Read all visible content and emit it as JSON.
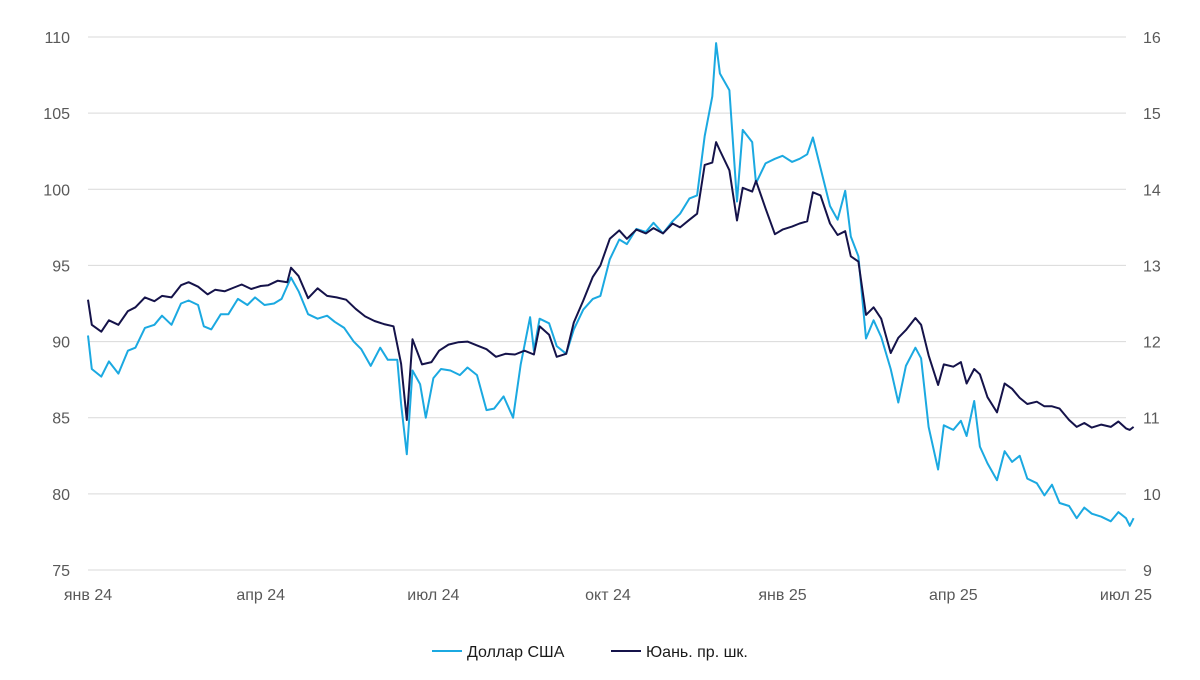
{
  "chart_data": {
    "type": "line",
    "title": "",
    "x_tick_labels": [
      "янв 24",
      "апр 24",
      "июл 24",
      "окт 24",
      "янв 25",
      "апр 25",
      "июл 25"
    ],
    "x_tick_dates": [
      "2024-01-01",
      "2024-04-01",
      "2024-07-01",
      "2024-10-01",
      "2025-01-01",
      "2025-04-01",
      "2025-07-01"
    ],
    "y_left": {
      "min": 75,
      "max": 110,
      "ticks": [
        75,
        80,
        85,
        90,
        95,
        100,
        105,
        110
      ]
    },
    "y_right": {
      "min": 9,
      "max": 16,
      "ticks": [
        9,
        10,
        11,
        12,
        13,
        14,
        15,
        16
      ]
    },
    "grid": true,
    "legend_position": "bottom-center",
    "series": [
      {
        "name": "Доллар США",
        "axis": "left",
        "color": "#1ba9e1",
        "points": [
          [
            "2024-01-01",
            90.4
          ],
          [
            "2024-01-03",
            88.2
          ],
          [
            "2024-01-08",
            87.7
          ],
          [
            "2024-01-12",
            88.7
          ],
          [
            "2024-01-17",
            87.9
          ],
          [
            "2024-01-22",
            89.4
          ],
          [
            "2024-01-26",
            89.6
          ],
          [
            "2024-01-31",
            90.9
          ],
          [
            "2024-02-05",
            91.1
          ],
          [
            "2024-02-09",
            91.7
          ],
          [
            "2024-02-14",
            91.1
          ],
          [
            "2024-02-19",
            92.5
          ],
          [
            "2024-02-23",
            92.7
          ],
          [
            "2024-02-28",
            92.4
          ],
          [
            "2024-03-02",
            91.0
          ],
          [
            "2024-03-06",
            90.8
          ],
          [
            "2024-03-11",
            91.8
          ],
          [
            "2024-03-15",
            91.8
          ],
          [
            "2024-03-20",
            92.8
          ],
          [
            "2024-03-25",
            92.4
          ],
          [
            "2024-03-29",
            92.9
          ],
          [
            "2024-04-03",
            92.4
          ],
          [
            "2024-04-08",
            92.5
          ],
          [
            "2024-04-12",
            92.8
          ],
          [
            "2024-04-17",
            94.2
          ],
          [
            "2024-04-21",
            93.3
          ],
          [
            "2024-04-26",
            91.8
          ],
          [
            "2024-05-01",
            91.5
          ],
          [
            "2024-05-06",
            91.7
          ],
          [
            "2024-05-10",
            91.3
          ],
          [
            "2024-05-15",
            90.9
          ],
          [
            "2024-05-20",
            90.0
          ],
          [
            "2024-05-24",
            89.5
          ],
          [
            "2024-05-29",
            88.4
          ],
          [
            "2024-06-03",
            89.6
          ],
          [
            "2024-06-07",
            88.8
          ],
          [
            "2024-06-12",
            88.8
          ],
          [
            "2024-06-14",
            85.9
          ],
          [
            "2024-06-17",
            82.6
          ],
          [
            "2024-06-20",
            88.1
          ],
          [
            "2024-06-24",
            87.2
          ],
          [
            "2024-06-27",
            85.0
          ],
          [
            "2024-07-01",
            87.6
          ],
          [
            "2024-07-05",
            88.2
          ],
          [
            "2024-07-10",
            88.1
          ],
          [
            "2024-07-15",
            87.8
          ],
          [
            "2024-07-19",
            88.3
          ],
          [
            "2024-07-24",
            87.8
          ],
          [
            "2024-07-29",
            85.5
          ],
          [
            "2024-08-02",
            85.6
          ],
          [
            "2024-08-07",
            86.4
          ],
          [
            "2024-08-12",
            85.0
          ],
          [
            "2024-08-16",
            88.5
          ],
          [
            "2024-08-21",
            91.6
          ],
          [
            "2024-08-23",
            89.4
          ],
          [
            "2024-08-26",
            91.5
          ],
          [
            "2024-08-31",
            91.2
          ],
          [
            "2024-09-04",
            89.7
          ],
          [
            "2024-09-09",
            89.2
          ],
          [
            "2024-09-13",
            90.8
          ],
          [
            "2024-09-18",
            92.1
          ],
          [
            "2024-09-23",
            92.8
          ],
          [
            "2024-09-27",
            93.0
          ],
          [
            "2024-10-02",
            95.4
          ],
          [
            "2024-10-07",
            96.7
          ],
          [
            "2024-10-11",
            96.4
          ],
          [
            "2024-10-16",
            97.4
          ],
          [
            "2024-10-21",
            97.2
          ],
          [
            "2024-10-25",
            97.8
          ],
          [
            "2024-10-30",
            97.1
          ],
          [
            "2024-11-04",
            97.9
          ],
          [
            "2024-11-08",
            98.4
          ],
          [
            "2024-11-13",
            99.4
          ],
          [
            "2024-11-17",
            99.6
          ],
          [
            "2024-11-21",
            103.5
          ],
          [
            "2024-11-25",
            106.1
          ],
          [
            "2024-11-27",
            109.6
          ],
          [
            "2024-11-29",
            107.6
          ],
          [
            "2024-12-04",
            106.5
          ],
          [
            "2024-12-08",
            99.2
          ],
          [
            "2024-12-11",
            103.9
          ],
          [
            "2024-12-16",
            103.1
          ],
          [
            "2024-12-18",
            100.4
          ],
          [
            "2024-12-23",
            101.7
          ],
          [
            "2024-12-28",
            102.0
          ],
          [
            "2025-01-01",
            102.2
          ],
          [
            "2025-01-06",
            101.8
          ],
          [
            "2025-01-10",
            102.0
          ],
          [
            "2025-01-14",
            102.3
          ],
          [
            "2025-01-17",
            103.4
          ],
          [
            "2025-01-21",
            101.4
          ],
          [
            "2025-01-26",
            98.9
          ],
          [
            "2025-01-30",
            98.0
          ],
          [
            "2025-02-03",
            99.9
          ],
          [
            "2025-02-06",
            96.9
          ],
          [
            "2025-02-10",
            95.6
          ],
          [
            "2025-02-14",
            90.2
          ],
          [
            "2025-02-18",
            91.4
          ],
          [
            "2025-02-22",
            90.3
          ],
          [
            "2025-02-27",
            88.2
          ],
          [
            "2025-03-03",
            86.0
          ],
          [
            "2025-03-07",
            88.4
          ],
          [
            "2025-03-12",
            89.6
          ],
          [
            "2025-03-15",
            88.9
          ],
          [
            "2025-03-19",
            84.4
          ],
          [
            "2025-03-24",
            81.6
          ],
          [
            "2025-03-27",
            84.5
          ],
          [
            "2025-04-01",
            84.2
          ],
          [
            "2025-04-05",
            84.8
          ],
          [
            "2025-04-08",
            83.8
          ],
          [
            "2025-04-12",
            86.1
          ],
          [
            "2025-04-15",
            83.1
          ],
          [
            "2025-04-19",
            82.0
          ],
          [
            "2025-04-24",
            80.9
          ],
          [
            "2025-04-28",
            82.8
          ],
          [
            "2025-05-02",
            82.1
          ],
          [
            "2025-05-06",
            82.5
          ],
          [
            "2025-05-10",
            81.0
          ],
          [
            "2025-05-15",
            80.7
          ],
          [
            "2025-05-19",
            79.9
          ],
          [
            "2025-05-23",
            80.6
          ],
          [
            "2025-05-27",
            79.4
          ],
          [
            "2025-06-01",
            79.2
          ],
          [
            "2025-06-05",
            78.4
          ],
          [
            "2025-06-09",
            79.1
          ],
          [
            "2025-06-13",
            78.7
          ],
          [
            "2025-06-18",
            78.5
          ],
          [
            "2025-06-23",
            78.2
          ],
          [
            "2025-06-27",
            78.8
          ],
          [
            "2025-07-01",
            78.4
          ],
          [
            "2025-07-03",
            77.9
          ],
          [
            "2025-07-05",
            78.4
          ]
        ]
      },
      {
        "name": "Юань. пр. шк.",
        "axis": "right",
        "color": "#15134a",
        "points": [
          [
            "2024-01-01",
            12.55
          ],
          [
            "2024-01-03",
            12.22
          ],
          [
            "2024-01-08",
            12.13
          ],
          [
            "2024-01-12",
            12.28
          ],
          [
            "2024-01-17",
            12.22
          ],
          [
            "2024-01-22",
            12.4
          ],
          [
            "2024-01-26",
            12.45
          ],
          [
            "2024-01-31",
            12.58
          ],
          [
            "2024-02-05",
            12.53
          ],
          [
            "2024-02-09",
            12.6
          ],
          [
            "2024-02-14",
            12.58
          ],
          [
            "2024-02-19",
            12.74
          ],
          [
            "2024-02-23",
            12.78
          ],
          [
            "2024-02-28",
            12.72
          ],
          [
            "2024-03-04",
            12.62
          ],
          [
            "2024-03-08",
            12.68
          ],
          [
            "2024-03-13",
            12.66
          ],
          [
            "2024-03-18",
            12.71
          ],
          [
            "2024-03-22",
            12.75
          ],
          [
            "2024-03-27",
            12.69
          ],
          [
            "2024-04-01",
            12.73
          ],
          [
            "2024-04-05",
            12.74
          ],
          [
            "2024-04-10",
            12.8
          ],
          [
            "2024-04-15",
            12.78
          ],
          [
            "2024-04-17",
            12.97
          ],
          [
            "2024-04-21",
            12.86
          ],
          [
            "2024-04-26",
            12.57
          ],
          [
            "2024-05-01",
            12.7
          ],
          [
            "2024-05-06",
            12.6
          ],
          [
            "2024-05-11",
            12.58
          ],
          [
            "2024-05-16",
            12.55
          ],
          [
            "2024-05-21",
            12.43
          ],
          [
            "2024-05-26",
            12.33
          ],
          [
            "2024-05-31",
            12.27
          ],
          [
            "2024-06-05",
            12.23
          ],
          [
            "2024-06-10",
            12.2
          ],
          [
            "2024-06-14",
            11.71
          ],
          [
            "2024-06-17",
            10.97
          ],
          [
            "2024-06-20",
            12.03
          ],
          [
            "2024-06-25",
            11.7
          ],
          [
            "2024-06-30",
            11.73
          ],
          [
            "2024-07-04",
            11.88
          ],
          [
            "2024-07-09",
            11.96
          ],
          [
            "2024-07-14",
            11.99
          ],
          [
            "2024-07-19",
            12.0
          ],
          [
            "2024-07-24",
            11.95
          ],
          [
            "2024-07-29",
            11.9
          ],
          [
            "2024-08-03",
            11.8
          ],
          [
            "2024-08-08",
            11.84
          ],
          [
            "2024-08-13",
            11.83
          ],
          [
            "2024-08-18",
            11.88
          ],
          [
            "2024-08-23",
            11.83
          ],
          [
            "2024-08-26",
            12.2
          ],
          [
            "2024-08-31",
            12.09
          ],
          [
            "2024-09-04",
            11.8
          ],
          [
            "2024-09-09",
            11.84
          ],
          [
            "2024-09-13",
            12.25
          ],
          [
            "2024-09-18",
            12.54
          ],
          [
            "2024-09-23",
            12.85
          ],
          [
            "2024-09-27",
            13.0
          ],
          [
            "2024-10-02",
            13.35
          ],
          [
            "2024-10-07",
            13.46
          ],
          [
            "2024-10-11",
            13.35
          ],
          [
            "2024-10-16",
            13.47
          ],
          [
            "2024-10-21",
            13.42
          ],
          [
            "2024-10-25",
            13.49
          ],
          [
            "2024-10-30",
            13.42
          ],
          [
            "2024-11-04",
            13.55
          ],
          [
            "2024-11-08",
            13.5
          ],
          [
            "2024-11-13",
            13.6
          ],
          [
            "2024-11-17",
            13.68
          ],
          [
            "2024-11-21",
            14.32
          ],
          [
            "2024-11-25",
            14.35
          ],
          [
            "2024-11-27",
            14.62
          ],
          [
            "2024-11-29",
            14.51
          ],
          [
            "2024-12-04",
            14.25
          ],
          [
            "2024-12-08",
            13.59
          ],
          [
            "2024-12-11",
            14.02
          ],
          [
            "2024-12-16",
            13.97
          ],
          [
            "2024-12-18",
            14.11
          ],
          [
            "2024-12-23",
            13.75
          ],
          [
            "2024-12-28",
            13.41
          ],
          [
            "2025-01-01",
            13.47
          ],
          [
            "2025-01-06",
            13.51
          ],
          [
            "2025-01-10",
            13.55
          ],
          [
            "2025-01-14",
            13.58
          ],
          [
            "2025-01-17",
            13.96
          ],
          [
            "2025-01-21",
            13.92
          ],
          [
            "2025-01-26",
            13.55
          ],
          [
            "2025-01-30",
            13.4
          ],
          [
            "2025-02-03",
            13.45
          ],
          [
            "2025-02-06",
            13.12
          ],
          [
            "2025-02-10",
            13.05
          ],
          [
            "2025-02-14",
            12.35
          ],
          [
            "2025-02-18",
            12.45
          ],
          [
            "2025-02-22",
            12.3
          ],
          [
            "2025-02-27",
            11.85
          ],
          [
            "2025-03-03",
            12.05
          ],
          [
            "2025-03-07",
            12.15
          ],
          [
            "2025-03-12",
            12.31
          ],
          [
            "2025-03-15",
            12.22
          ],
          [
            "2025-03-19",
            11.82
          ],
          [
            "2025-03-24",
            11.43
          ],
          [
            "2025-03-27",
            11.7
          ],
          [
            "2025-04-01",
            11.67
          ],
          [
            "2025-04-05",
            11.73
          ],
          [
            "2025-04-08",
            11.45
          ],
          [
            "2025-04-12",
            11.64
          ],
          [
            "2025-04-15",
            11.57
          ],
          [
            "2025-04-19",
            11.27
          ],
          [
            "2025-04-24",
            11.07
          ],
          [
            "2025-04-28",
            11.45
          ],
          [
            "2025-05-02",
            11.38
          ],
          [
            "2025-05-06",
            11.26
          ],
          [
            "2025-05-10",
            11.18
          ],
          [
            "2025-05-15",
            11.21
          ],
          [
            "2025-05-19",
            11.15
          ],
          [
            "2025-05-23",
            11.15
          ],
          [
            "2025-05-27",
            11.12
          ],
          [
            "2025-06-01",
            10.97
          ],
          [
            "2025-06-05",
            10.88
          ],
          [
            "2025-06-09",
            10.93
          ],
          [
            "2025-06-13",
            10.87
          ],
          [
            "2025-06-18",
            10.91
          ],
          [
            "2025-06-23",
            10.88
          ],
          [
            "2025-06-27",
            10.95
          ],
          [
            "2025-07-01",
            10.86
          ],
          [
            "2025-07-03",
            10.84
          ],
          [
            "2025-07-05",
            10.88
          ]
        ]
      }
    ]
  }
}
